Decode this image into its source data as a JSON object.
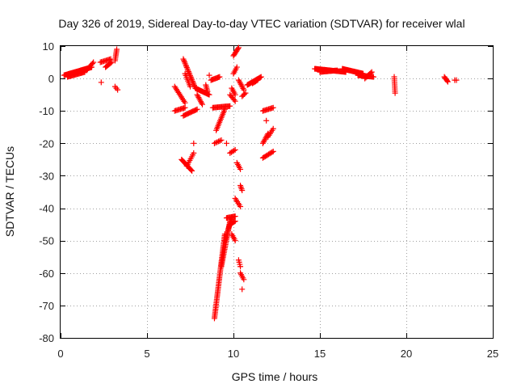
{
  "chart_data": {
    "type": "scatter",
    "title": "Day 326 of 2019, Sidereal Day-to-day VTEC variation (SDTVAR) for receiver wlal",
    "xlabel": "GPS time / hours",
    "ylabel": "SDTVAR / TECUs",
    "xlim": [
      0,
      25
    ],
    "ylim": [
      -80,
      10
    ],
    "xticks": [
      0,
      5,
      10,
      15,
      20,
      25
    ],
    "yticks": [
      10,
      0,
      -10,
      -20,
      -30,
      -40,
      -50,
      -60,
      -70,
      -80
    ],
    "grid": true,
    "marker": "+",
    "color": "#ff0000",
    "series": [
      {
        "name": "SDTVAR",
        "segments": [
          {
            "x0": 0.2,
            "y0": 1.0,
            "x1": 1.8,
            "y1": 3.5,
            "n": 40
          },
          {
            "x0": 0.4,
            "y0": 0.5,
            "x1": 1.4,
            "y1": 2.0,
            "n": 20
          },
          {
            "x0": 1.5,
            "y0": 2.5,
            "x1": 1.9,
            "y1": 5.0,
            "n": 8
          },
          {
            "x0": 2.3,
            "y0": 5.0,
            "x1": 2.9,
            "y1": 6.0,
            "n": 10
          },
          {
            "x0": 2.6,
            "y0": 3.5,
            "x1": 2.95,
            "y1": 5.0,
            "n": 8
          },
          {
            "x0": 3.15,
            "y0": 5.5,
            "x1": 3.25,
            "y1": 9.0,
            "n": 8
          },
          {
            "x0": 3.15,
            "y0": -2.5,
            "x1": 3.3,
            "y1": -3.5,
            "n": 3
          },
          {
            "x0": 2.35,
            "y0": -1.2,
            "x1": 2.35,
            "y1": -1.2,
            "n": 1
          },
          {
            "x0": 6.6,
            "y0": -2.5,
            "x1": 7.2,
            "y1": -7.5,
            "n": 12
          },
          {
            "x0": 6.6,
            "y0": -10.0,
            "x1": 7.2,
            "y1": -9.0,
            "n": 10
          },
          {
            "x0": 7.1,
            "y0": -11.5,
            "x1": 7.9,
            "y1": -9.5,
            "n": 14
          },
          {
            "x0": 7.1,
            "y0": 6.0,
            "x1": 7.8,
            "y1": -3.0,
            "n": 22
          },
          {
            "x0": 7.2,
            "y0": 1.5,
            "x1": 7.5,
            "y1": -2.5,
            "n": 8
          },
          {
            "x0": 7.0,
            "y0": -25.0,
            "x1": 7.6,
            "y1": -28.5,
            "n": 15
          },
          {
            "x0": 7.3,
            "y0": -27.0,
            "x1": 7.7,
            "y1": -23.0,
            "n": 8
          },
          {
            "x0": 7.7,
            "y0": -20.0,
            "x1": 7.7,
            "y1": -20.0,
            "n": 1
          },
          {
            "x0": 7.8,
            "y0": -3.0,
            "x1": 8.6,
            "y1": -5.0,
            "n": 18
          },
          {
            "x0": 7.9,
            "y0": -5.0,
            "x1": 8.2,
            "y1": -8.0,
            "n": 8
          },
          {
            "x0": 8.4,
            "y0": -2.0,
            "x1": 8.5,
            "y1": -4.0,
            "n": 5
          },
          {
            "x0": 8.6,
            "y0": 1.0,
            "x1": 8.6,
            "y1": 1.0,
            "n": 1
          },
          {
            "x0": 8.7,
            "y0": -0.5,
            "x1": 9.2,
            "y1": 0.5,
            "n": 10
          },
          {
            "x0": 8.8,
            "y0": -9.0,
            "x1": 9.8,
            "y1": -8.5,
            "n": 18
          },
          {
            "x0": 9.0,
            "y0": -16.0,
            "x1": 9.5,
            "y1": -9.5,
            "n": 14
          },
          {
            "x0": 8.9,
            "y0": -20.0,
            "x1": 9.3,
            "y1": -19.0,
            "n": 6
          },
          {
            "x0": 9.6,
            "y0": -20.0,
            "x1": 9.6,
            "y1": -20.0,
            "n": 1
          },
          {
            "x0": 9.8,
            "y0": -5.0,
            "x1": 10.1,
            "y1": -7.0,
            "n": 6
          },
          {
            "x0": 9.9,
            "y0": -3.0,
            "x1": 10.1,
            "y1": -5.0,
            "n": 5
          },
          {
            "x0": 10.0,
            "y0": 7.0,
            "x1": 10.3,
            "y1": 9.5,
            "n": 8
          },
          {
            "x0": 10.0,
            "y0": 1.5,
            "x1": 10.2,
            "y1": 3.5,
            "n": 5
          },
          {
            "x0": 10.3,
            "y0": -0.5,
            "x1": 10.6,
            "y1": -3.5,
            "n": 8
          },
          {
            "x0": 10.5,
            "y0": -5.5,
            "x1": 10.7,
            "y1": -4.5,
            "n": 4
          },
          {
            "x0": 10.8,
            "y0": -2.0,
            "x1": 11.6,
            "y1": 0.5,
            "n": 18
          },
          {
            "x0": 11.1,
            "y0": -1.5,
            "x1": 11.4,
            "y1": -0.5,
            "n": 6
          },
          {
            "x0": 9.8,
            "y0": -23.0,
            "x1": 10.1,
            "y1": -22.0,
            "n": 5
          },
          {
            "x0": 10.2,
            "y0": -26.0,
            "x1": 10.4,
            "y1": -28.0,
            "n": 5
          },
          {
            "x0": 10.4,
            "y0": -33.0,
            "x1": 10.5,
            "y1": -34.5,
            "n": 4
          },
          {
            "x0": 10.1,
            "y0": -37.0,
            "x1": 10.4,
            "y1": -39.5,
            "n": 6
          },
          {
            "x0": 9.6,
            "y0": -43.0,
            "x1": 10.1,
            "y1": -42.5,
            "n": 10
          },
          {
            "x0": 9.8,
            "y0": -45.0,
            "x1": 10.1,
            "y1": -44.0,
            "n": 6
          },
          {
            "x0": 8.9,
            "y0": -74.0,
            "x1": 9.5,
            "y1": -48.0,
            "n": 55
          },
          {
            "x0": 9.3,
            "y0": -58.0,
            "x1": 9.8,
            "y1": -44.0,
            "n": 30
          },
          {
            "x0": 9.5,
            "y0": -50.0,
            "x1": 9.9,
            "y1": -43.0,
            "n": 14
          },
          {
            "x0": 9.9,
            "y0": -48.0,
            "x1": 10.1,
            "y1": -50.0,
            "n": 5
          },
          {
            "x0": 10.3,
            "y0": -56.0,
            "x1": 10.4,
            "y1": -58.0,
            "n": 4
          },
          {
            "x0": 10.4,
            "y0": -60.0,
            "x1": 10.6,
            "y1": -62.0,
            "n": 5
          },
          {
            "x0": 10.5,
            "y0": -65.0,
            "x1": 10.5,
            "y1": -65.0,
            "n": 1
          },
          {
            "x0": 11.7,
            "y0": -10.0,
            "x1": 12.3,
            "y1": -9.0,
            "n": 10
          },
          {
            "x0": 11.9,
            "y0": -13.0,
            "x1": 11.9,
            "y1": -13.0,
            "n": 1
          },
          {
            "x0": 11.7,
            "y0": -20.0,
            "x1": 12.0,
            "y1": -17.0,
            "n": 8
          },
          {
            "x0": 12.0,
            "y0": -18.0,
            "x1": 12.3,
            "y1": -15.5,
            "n": 6
          },
          {
            "x0": 11.7,
            "y0": -24.5,
            "x1": 12.3,
            "y1": -22.5,
            "n": 10
          },
          {
            "x0": 14.7,
            "y0": 3.0,
            "x1": 16.5,
            "y1": 2.0,
            "n": 40
          },
          {
            "x0": 15.0,
            "y0": 2.0,
            "x1": 16.0,
            "y1": 2.5,
            "n": 20
          },
          {
            "x0": 16.3,
            "y0": 3.0,
            "x1": 17.5,
            "y1": 1.5,
            "n": 28
          },
          {
            "x0": 17.2,
            "y0": 1.0,
            "x1": 18.1,
            "y1": 0.5,
            "n": 20
          },
          {
            "x0": 17.6,
            "y0": 0.0,
            "x1": 18.0,
            "y1": 2.0,
            "n": 8
          },
          {
            "x0": 19.3,
            "y0": 0.5,
            "x1": 19.35,
            "y1": -4.5,
            "n": 9
          },
          {
            "x0": 22.2,
            "y0": 0.5,
            "x1": 22.4,
            "y1": -1.0,
            "n": 6
          },
          {
            "x0": 22.8,
            "y0": -0.5,
            "x1": 22.9,
            "y1": -0.5,
            "n": 2
          }
        ]
      }
    ]
  }
}
